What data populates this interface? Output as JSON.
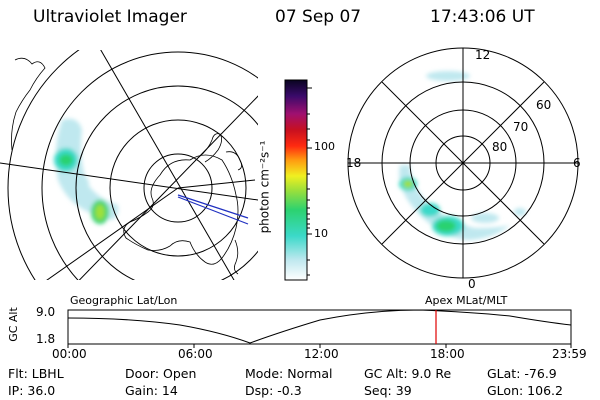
{
  "header": {
    "instrument": "Ultraviolet Imager",
    "date": "07 Sep 07",
    "time": "17:43:06 UT"
  },
  "colorbar": {
    "label": "photon cm⁻²s⁻¹",
    "ticks": [
      "100",
      "10"
    ],
    "scale": "log"
  },
  "mlt_map": {
    "mlt_labels": [
      "12",
      "18",
      "6",
      "0"
    ],
    "lat_labels": [
      "60",
      "70",
      "80"
    ]
  },
  "timeline": {
    "ylabel": "GC Alt",
    "ymax": "9.0",
    "ymin": "1.8",
    "left_caption": "Geographic Lat/Lon",
    "right_caption": "Apex MLat/MLT",
    "xticks": [
      "00:00",
      "06:00",
      "12:00",
      "18:00",
      "23:59"
    ],
    "current_time_marker": "17:43",
    "marker_color": "#e00000"
  },
  "status": {
    "flt": "Flt: LBHL",
    "ip": "IP: 36.0",
    "door": "Door: Open",
    "gain": "Gain: 14",
    "mode": "Mode: Normal",
    "dsp": "Dsp:   -0.3",
    "gc_alt": "GC Alt: 9.0 Re",
    "seq": "Seq: 39",
    "glat": "GLat: -76.9",
    "glon": "GLon: 106.2"
  }
}
